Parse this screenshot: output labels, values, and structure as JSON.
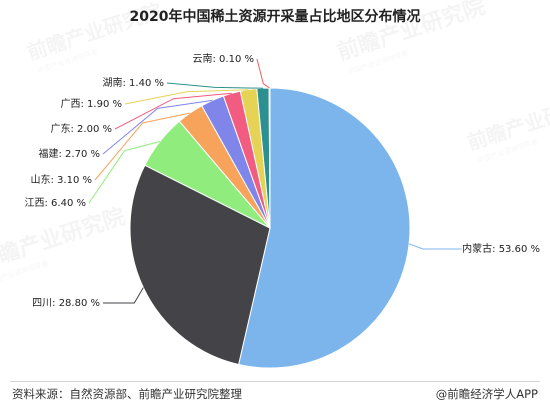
{
  "chart_data": {
    "type": "pie",
    "title": "2020年中国稀土资源开采量占比地区分布情况",
    "slices": [
      {
        "label": "内蒙古",
        "value": 53.6,
        "text": "内蒙古: 53.60 %",
        "color": "#7cb5ec"
      },
      {
        "label": "四川",
        "value": 28.8,
        "text": "四川: 28.80 %",
        "color": "#434348"
      },
      {
        "label": "江西",
        "value": 6.4,
        "text": "江西: 6.40 %",
        "color": "#90ed7d"
      },
      {
        "label": "山东",
        "value": 3.1,
        "text": "山东: 3.10 %",
        "color": "#f7a35c"
      },
      {
        "label": "福建",
        "value": 2.7,
        "text": "福建: 2.70 %",
        "color": "#8085e9"
      },
      {
        "label": "广东",
        "value": 2.0,
        "text": "广东: 2.00 %",
        "color": "#f15c80"
      },
      {
        "label": "广西",
        "value": 1.9,
        "text": "广西: 1.90 %",
        "color": "#e4d354"
      },
      {
        "label": "湖南",
        "value": 1.4,
        "text": "湖南: 1.40 %",
        "color": "#2b908f"
      },
      {
        "label": "云南",
        "value": 0.1,
        "text": "云南: 0.10 %",
        "color": "#f45b5b"
      }
    ]
  },
  "footer": {
    "source": "资料来源：自然资源部、前瞻产业研究院整理",
    "brand": "@前瞻经济学人APP"
  },
  "watermark": {
    "text": "前瞻产业研究院",
    "subtext": "中国产业咨询领导者"
  }
}
